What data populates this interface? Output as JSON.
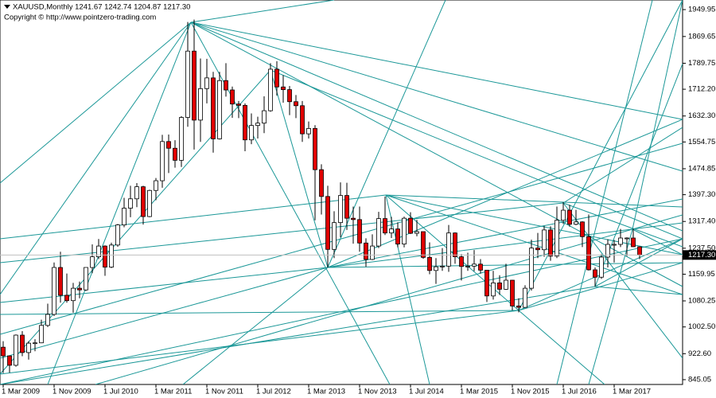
{
  "header": "XAUUSD,Monthly  1241.67 1242.74 1204.87 1217.30",
  "copyright": "Copyright © http://www.pointzero-trading.com",
  "chart_data": {
    "type": "candlestick",
    "up_color": "#ffffff",
    "down_color": "#e00000",
    "ylim": [
      830.7,
      1978.6
    ],
    "yticks": [
      {
        "value": 1949.95,
        "label": "1949.95"
      },
      {
        "value": 1869.65,
        "label": "1869.65"
      },
      {
        "value": 1789.75,
        "label": "1789.75"
      },
      {
        "value": 1712.2,
        "label": "1712.20"
      },
      {
        "value": 1632.3,
        "label": "1632.30"
      },
      {
        "value": 1554.75,
        "label": "1554.75"
      },
      {
        "value": 1474.85,
        "label": "1474.85"
      },
      {
        "value": 1397.3,
        "label": "1397.30"
      },
      {
        "value": 1317.4,
        "label": "1317.40"
      },
      {
        "value": 1237.5,
        "label": "1237.50"
      },
      {
        "value": 1159.95,
        "label": "1159.95"
      },
      {
        "value": 1080.25,
        "label": "1080.25"
      },
      {
        "value": 1002.5,
        "label": "1002.50"
      },
      {
        "value": 922.6,
        "label": "922.60"
      },
      {
        "value": 845.05,
        "label": "845.05"
      }
    ],
    "price": {
      "value": 1217.3,
      "label": "1217.30"
    },
    "categories": [
      "1 Mar 2009",
      null,
      null,
      null,
      null,
      null,
      null,
      null,
      "1 Nov 2009",
      null,
      null,
      null,
      null,
      null,
      null,
      null,
      "1 Jul 2010",
      null,
      null,
      null,
      null,
      null,
      null,
      null,
      "1 Mar 2011",
      null,
      null,
      null,
      null,
      null,
      null,
      null,
      "1 Nov 2011",
      null,
      null,
      null,
      null,
      null,
      null,
      null,
      "1 Jul 2012",
      null,
      null,
      null,
      null,
      null,
      null,
      null,
      "1 Mar 2013",
      null,
      null,
      null,
      null,
      null,
      null,
      null,
      "1 Nov 2013",
      null,
      null,
      null,
      null,
      null,
      null,
      null,
      "1 Jul 2014",
      null,
      null,
      null,
      null,
      null,
      null,
      null,
      "1 Mar 2015",
      null,
      null,
      null,
      null,
      null,
      null,
      null,
      "1 Nov 2015",
      null,
      null,
      null,
      null,
      null,
      null,
      null,
      "1 Jul 2016",
      null,
      null,
      null,
      null,
      null,
      null,
      null,
      "1 Mar 2017",
      null,
      null,
      null,
      null
    ],
    "open": [
      942,
      916,
      888,
      978,
      926,
      954,
      955,
      1007,
      1040,
      1180,
      1097,
      1081,
      1118,
      1113,
      1180,
      1212,
      1244,
      1181,
      1247,
      1307,
      1357,
      1385,
      1421,
      1332,
      1410,
      1439,
      1556,
      1536,
      1500,
      1628,
      1826,
      1620,
      1714,
      1746,
      1564,
      1738,
      1710,
      1668,
      1664,
      1561,
      1604,
      1611,
      1648,
      1772,
      1719,
      1711,
      1675,
      1663,
      1579,
      1595,
      1472,
      1392,
      1234,
      1314,
      1395,
      1327,
      1323,
      1253,
      1204,
      1244,
      1326,
      1283,
      1295,
      1250,
      1327,
      1282,
      1287,
      1210,
      1171,
      1182,
      1184,
      1283,
      1212,
      1183,
      1184,
      1190,
      1172,
      1095,
      1134,
      1115,
      1142,
      1065,
      1061,
      1118,
      1238,
      1233,
      1292,
      1214,
      1321,
      1351,
      1309,
      1316,
      1272,
      1173,
      1151,
      1211,
      1249,
      1249,
      1268,
      1268,
      1241.67
    ],
    "high": [
      960,
      916,
      980,
      990,
      960,
      966,
      1024,
      1072,
      1195,
      1227,
      1162,
      1134,
      1138,
      1180,
      1249,
      1265,
      1246,
      1254,
      1310,
      1388,
      1424,
      1432,
      1424,
      1412,
      1447,
      1576,
      1577,
      1560,
      1632,
      1913,
      1920,
      1804,
      1803,
      1764,
      1764,
      1790,
      1720,
      1677,
      1670,
      1640,
      1630,
      1691,
      1790,
      1796,
      1754,
      1722,
      1695,
      1677,
      1616,
      1605,
      1488,
      1424,
      1348,
      1434,
      1433,
      1362,
      1362,
      1267,
      1279,
      1346,
      1392,
      1331,
      1315,
      1332,
      1345,
      1322,
      1287,
      1255,
      1208,
      1238,
      1307,
      1285,
      1220,
      1224,
      1232,
      1205,
      1172,
      1170,
      1157,
      1191,
      1143,
      1088,
      1127,
      1263,
      1283,
      1304,
      1303,
      1362,
      1375,
      1367,
      1352,
      1318,
      1338,
      1180,
      1220,
      1264,
      1262,
      1295,
      1270,
      1296,
      1242.74
    ],
    "low": [
      865,
      866,
      884,
      915,
      905,
      930,
      954,
      1002,
      1035,
      1075,
      1075,
      1045,
      1088,
      1110,
      1163,
      1205,
      1155,
      1178,
      1242,
      1300,
      1330,
      1360,
      1308,
      1330,
      1381,
      1418,
      1462,
      1478,
      1480,
      1600,
      1532,
      1555,
      1670,
      1523,
      1562,
      1690,
      1627,
      1626,
      1527,
      1548,
      1565,
      1581,
      1645,
      1693,
      1672,
      1635,
      1626,
      1555,
      1565,
      1321,
      1338,
      1180,
      1208,
      1270,
      1292,
      1251,
      1227,
      1182,
      1202,
      1238,
      1277,
      1268,
      1240,
      1240,
      1280,
      1273,
      1206,
      1160,
      1131,
      1170,
      1167,
      1191,
      1141,
      1170,
      1169,
      1162,
      1077,
      1084,
      1098,
      1113,
      1052,
      1046,
      1061,
      1111,
      1208,
      1212,
      1200,
      1208,
      1310,
      1302,
      1306,
      1241,
      1171,
      1123,
      1146,
      1180,
      1195,
      1241,
      1214,
      1241,
      1204.87
    ],
    "close": [
      916,
      888,
      978,
      926,
      954,
      955,
      1007,
      1040,
      1180,
      1097,
      1081,
      1118,
      1113,
      1180,
      1212,
      1244,
      1181,
      1247,
      1307,
      1357,
      1385,
      1421,
      1332,
      1410,
      1439,
      1556,
      1536,
      1500,
      1628,
      1826,
      1620,
      1714,
      1746,
      1564,
      1738,
      1710,
      1668,
      1664,
      1561,
      1604,
      1611,
      1648,
      1772,
      1719,
      1711,
      1675,
      1663,
      1579,
      1595,
      1472,
      1392,
      1234,
      1314,
      1395,
      1327,
      1323,
      1253,
      1204,
      1244,
      1326,
      1283,
      1295,
      1250,
      1327,
      1282,
      1287,
      1210,
      1171,
      1182,
      1184,
      1283,
      1212,
      1183,
      1184,
      1190,
      1172,
      1095,
      1134,
      1115,
      1142,
      1065,
      1061,
      1118,
      1238,
      1233,
      1292,
      1214,
      1321,
      1351,
      1309,
      1316,
      1272,
      1173,
      1151,
      1211,
      1249,
      1249,
      1268,
      1268,
      1242,
      1217.3
    ]
  }
}
